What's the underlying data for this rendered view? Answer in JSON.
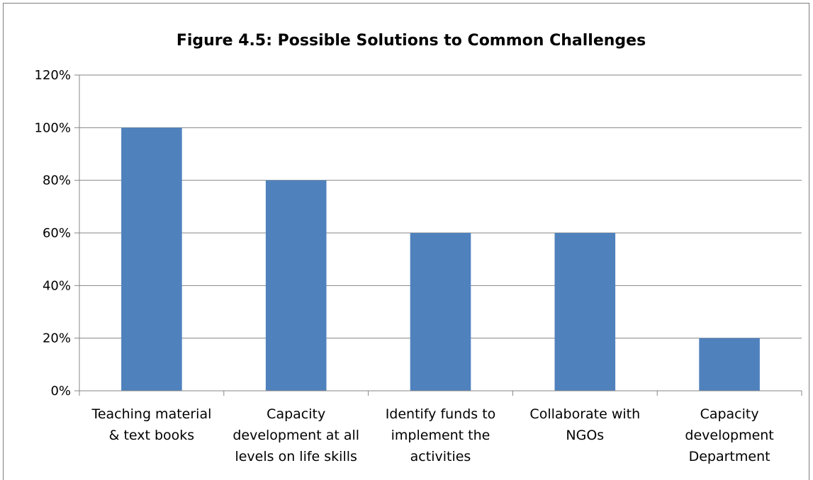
{
  "chart_data": {
    "type": "bar",
    "title": "Figure 4.5: Possible Solutions to Common Challenges",
    "xlabel": "",
    "ylabel": "",
    "categories": [
      [
        "Teaching material",
        "& text books"
      ],
      [
        "Capacity",
        "development at all",
        "levels on life skills"
      ],
      [
        "Identify funds to",
        "implement the",
        "activities"
      ],
      [
        "Collaborate with",
        "NGOs"
      ],
      [
        "Capacity",
        "development",
        "Department"
      ]
    ],
    "values": [
      100,
      80,
      60,
      60,
      20
    ],
    "ylim": [
      0,
      120
    ],
    "yticks": [
      0,
      20,
      40,
      60,
      80,
      100,
      120
    ],
    "ytick_format": "%",
    "grid": true,
    "legend": "none",
    "bar_color": "#4f81bd",
    "grid_color": "#868686"
  }
}
